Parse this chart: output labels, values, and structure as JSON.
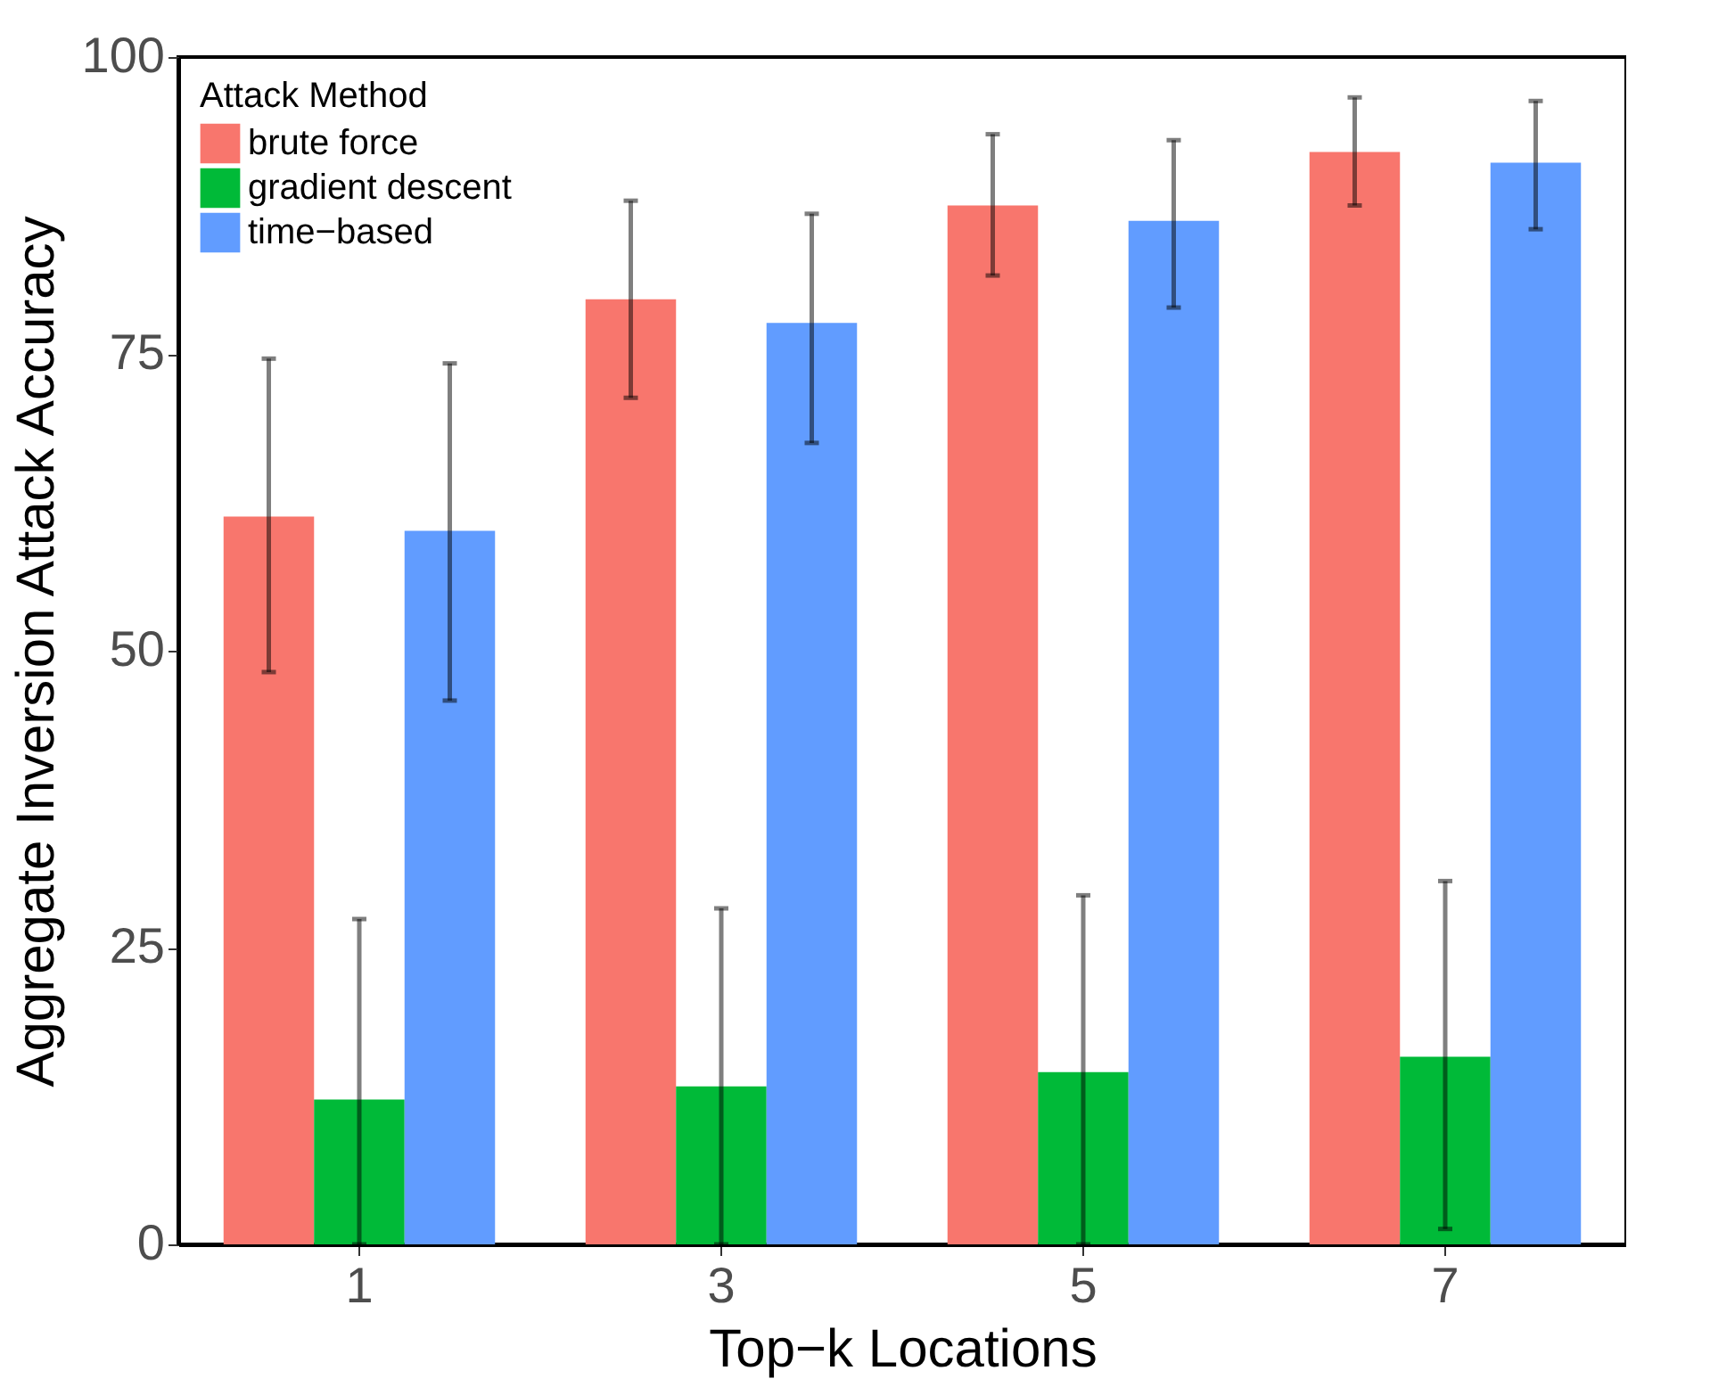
{
  "chart_data": {
    "type": "bar",
    "xlabel": "Top−k Locations",
    "ylabel": "Aggregate Inversion Attack Accuracy",
    "legend_title": "Attack Method",
    "categories": [
      "1",
      "3",
      "5",
      "7"
    ],
    "series": [
      {
        "name": "brute force",
        "color": "#f8766d",
        "values": [
          61.3,
          79.6,
          87.5,
          92.0
        ],
        "errors": [
          [
            48.2,
            74.6
          ],
          [
            71.3,
            87.9
          ],
          [
            81.6,
            93.5
          ],
          [
            87.5,
            96.6
          ]
        ]
      },
      {
        "name": "gradient descent",
        "color": "#00ba38",
        "values": [
          12.2,
          13.3,
          14.5,
          15.8
        ],
        "errors": [
          [
            0,
            27.4
          ],
          [
            0,
            28.3
          ],
          [
            0,
            29.4
          ],
          [
            1.3,
            30.6
          ]
        ]
      },
      {
        "name": "time−based",
        "color": "#619cff",
        "values": [
          60.1,
          77.6,
          86.2,
          91.1
        ],
        "errors": [
          [
            45.8,
            74.2
          ],
          [
            67.5,
            86.8
          ],
          [
            78.9,
            93.0
          ],
          [
            85.5,
            96.3
          ]
        ]
      }
    ],
    "ylim": [
      0,
      100
    ],
    "yticks": [
      0,
      25,
      50,
      75,
      100
    ],
    "grid": false,
    "legend": "top left"
  }
}
